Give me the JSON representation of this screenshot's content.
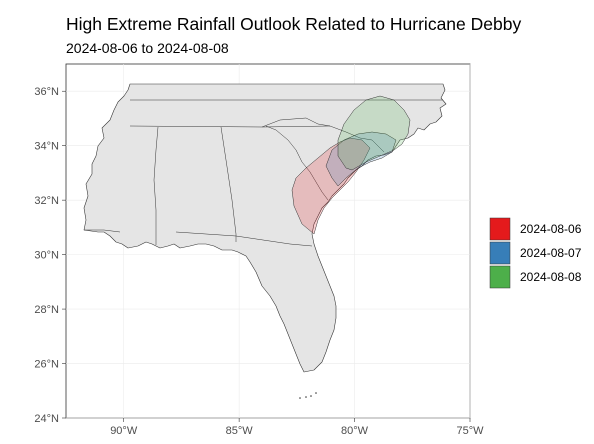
{
  "title": "High Extreme Rainfall Outlook Related to Hurricane Debby",
  "subtitle": "2024-08-06 to 2024-08-08",
  "chart_data": {
    "type": "map",
    "region": "Southeastern United States",
    "xlim": [
      -92.5,
      -75
    ],
    "ylim": [
      24,
      37
    ],
    "x_ticks": [
      {
        "value": -90,
        "label": "90°W"
      },
      {
        "value": -85,
        "label": "85°W"
      },
      {
        "value": -80,
        "label": "80°W"
      },
      {
        "value": -75,
        "label": "75°W"
      }
    ],
    "y_ticks": [
      {
        "value": 24,
        "label": "24°N"
      },
      {
        "value": 26,
        "label": "26°N"
      },
      {
        "value": 28,
        "label": "28°N"
      },
      {
        "value": 30,
        "label": "30°N"
      },
      {
        "value": 32,
        "label": "32°N"
      },
      {
        "value": 34,
        "label": "34°N"
      },
      {
        "value": 36,
        "label": "36°N"
      }
    ],
    "grid": true,
    "legend_position": "right",
    "series": [
      {
        "name": "2024-08-06",
        "color": "#E41A1C",
        "fill_opacity": 0.2
      },
      {
        "name": "2024-08-07",
        "color": "#377EB8",
        "fill_opacity": 0.2
      },
      {
        "name": "2024-08-08",
        "color": "#4DAF4A",
        "fill_opacity": 0.2
      }
    ]
  }
}
